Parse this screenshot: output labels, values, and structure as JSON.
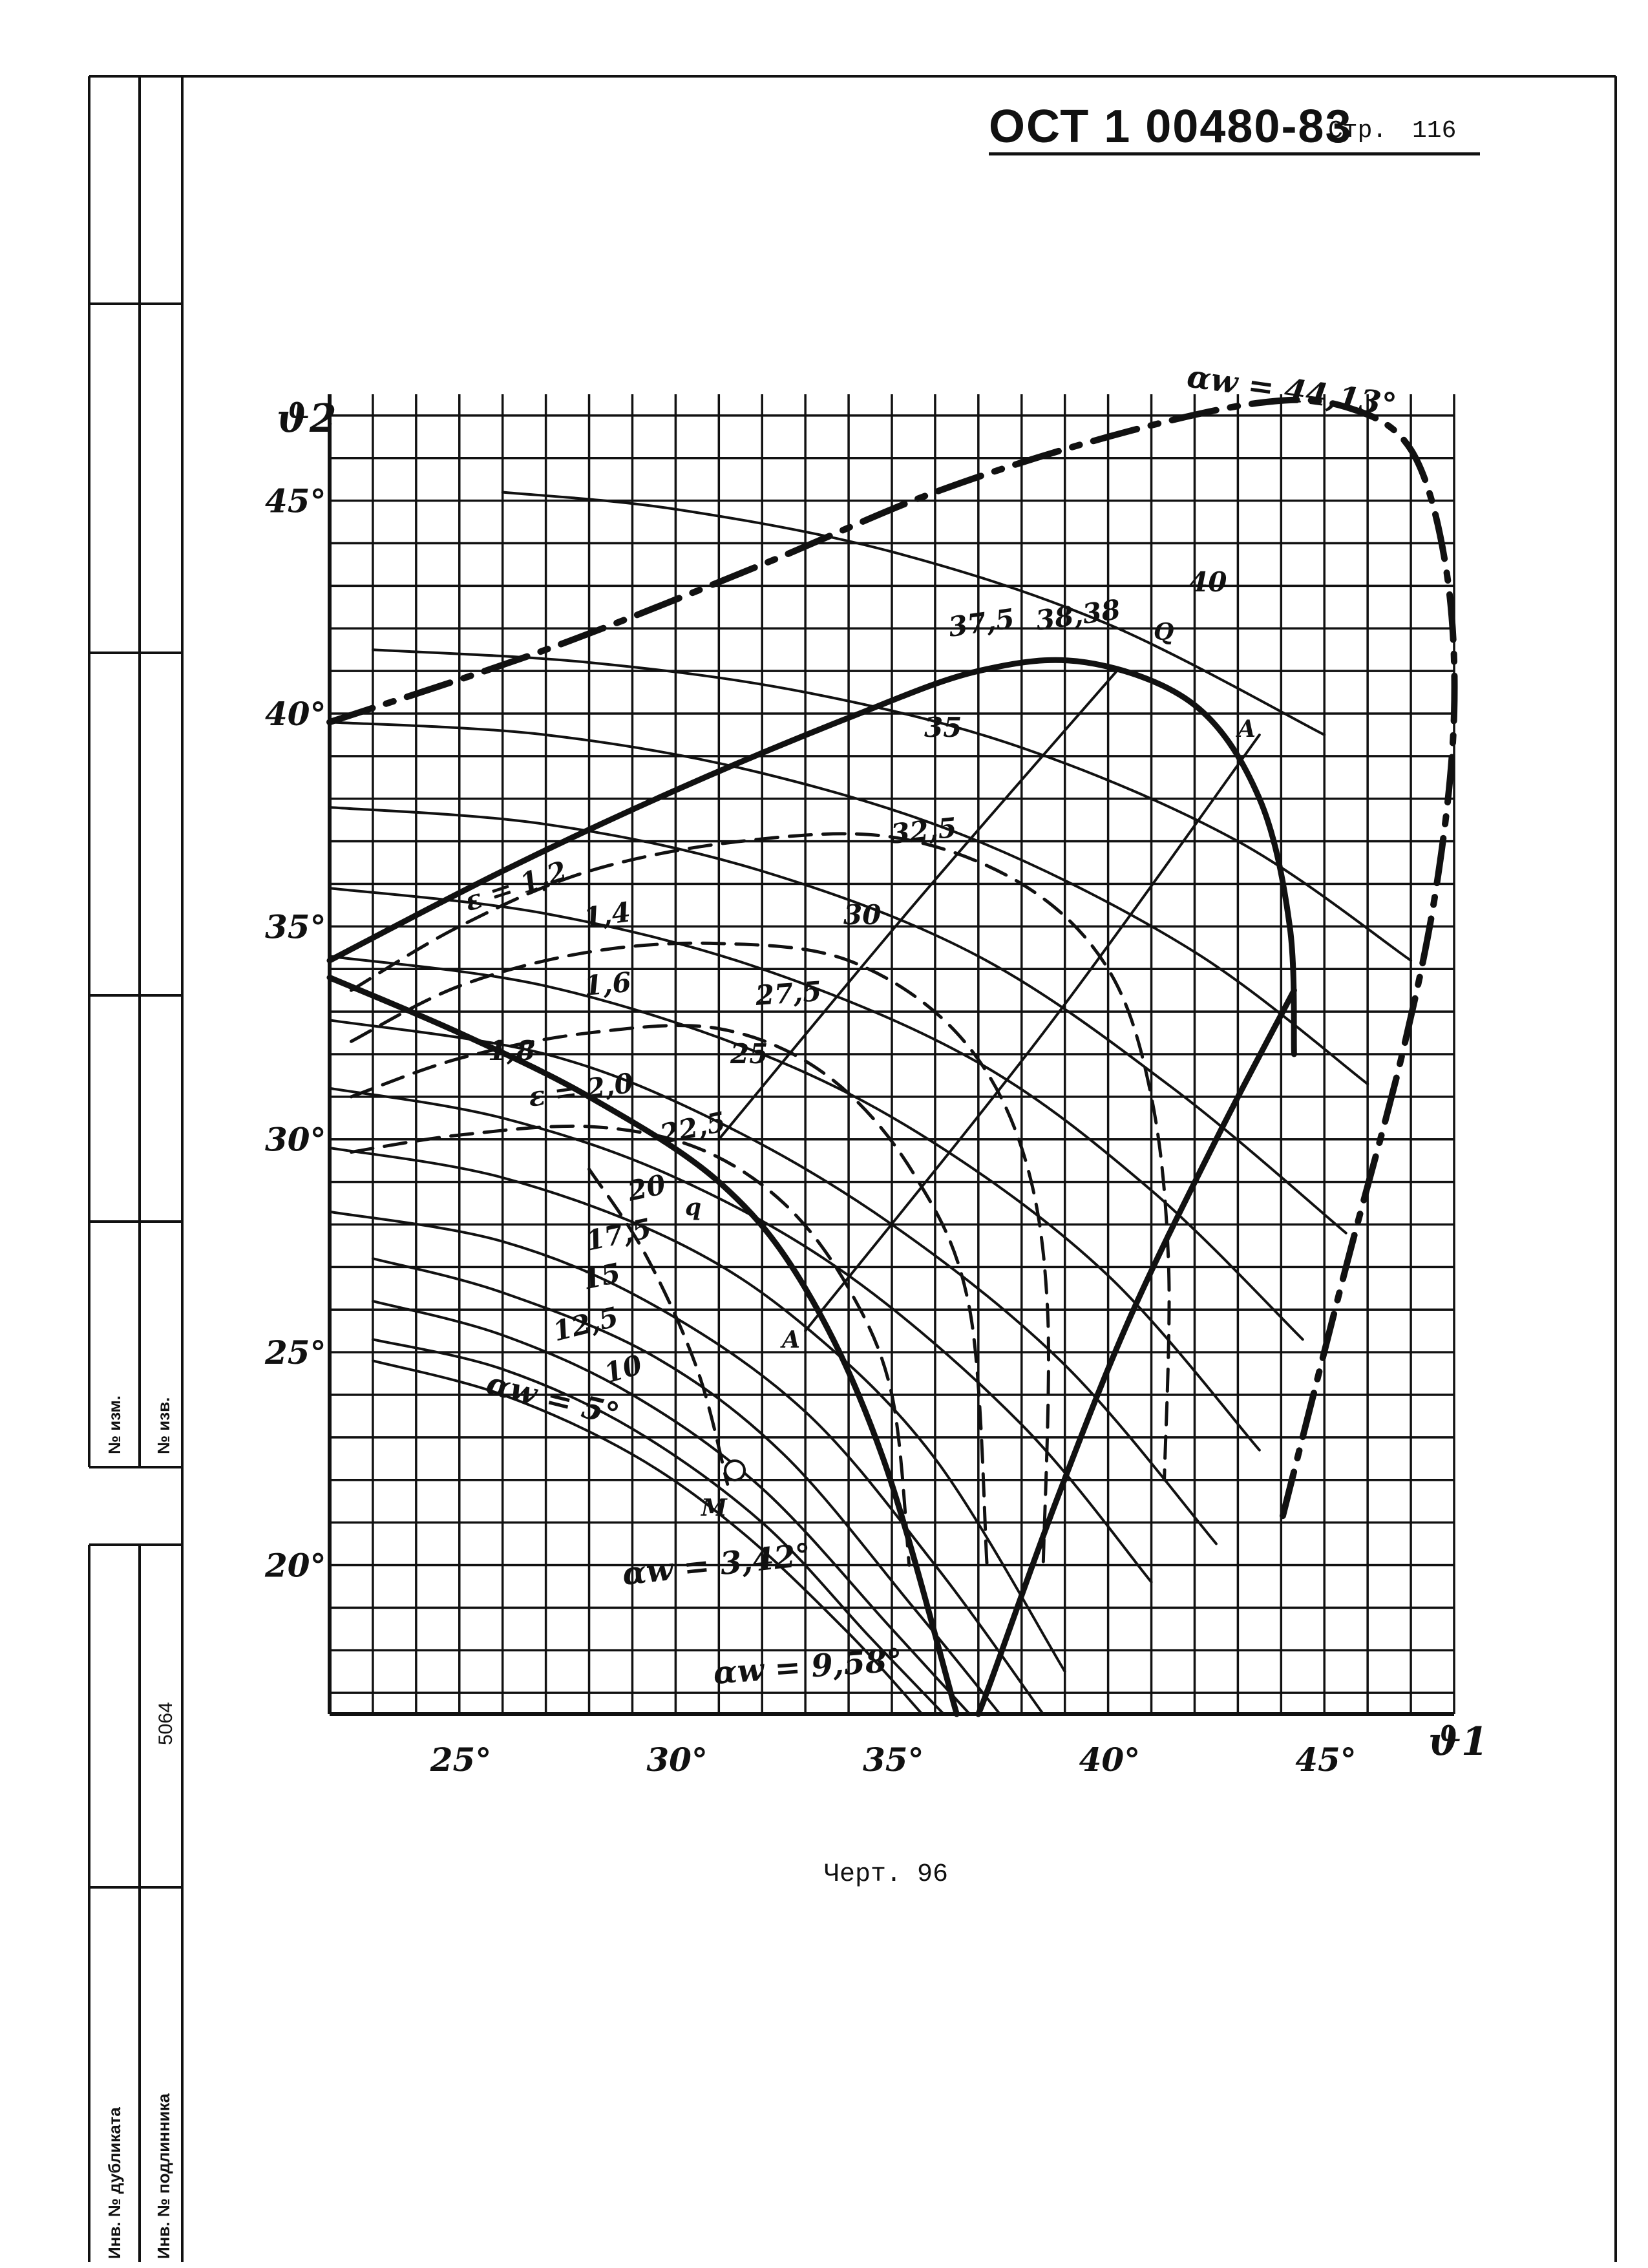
{
  "header": {
    "doc_number": "ОСТ 1 00480-83",
    "page_label": "Стр.",
    "page_number": "116"
  },
  "stamp": {
    "change_no_label": "№ изм.",
    "notice_no_label": "№ изв.",
    "inventory_value": "5064",
    "duplicate_label": "Инв. № дубликата",
    "original_label": "Инв. № подлинника"
  },
  "figure": {
    "caption": "Черт. 96"
  },
  "chart_data": {
    "type": "line",
    "xlabel": "ϑ1",
    "ylabel": "ϑ2",
    "x_ticks": [
      "25°",
      "30°",
      "35°",
      "40°",
      "45°"
    ],
    "y_ticks": [
      "20°",
      "25°",
      "30°",
      "35°",
      "40°",
      "45°"
    ],
    "xlim": [
      22,
      48
    ],
    "ylim": [
      16.5,
      47.5
    ],
    "grid": true,
    "curve_labels": [
      "40",
      "37,5",
      "38,38",
      "35",
      "32,5",
      "30",
      "27,5",
      "25",
      "22,5",
      "20",
      "17,5",
      "15",
      "12,5",
      "10"
    ],
    "epsilon_labels": [
      "ε = 1,2",
      "1,4",
      "1,6",
      "1,8",
      "ε = 2,0"
    ],
    "annotations": [
      "αw = 44,13°",
      "αw = 5°",
      "αw = 3,42°",
      "αw = 9,58°"
    ],
    "point_labels": [
      "Q",
      "A",
      "q",
      "A",
      "M"
    ],
    "series": [
      {
        "name": "40",
        "style": "thin",
        "x": [
          26,
          30,
          35,
          40,
          45
        ],
        "y": [
          45.2,
          44.8,
          43.8,
          42.1,
          39.5
        ]
      },
      {
        "name": "37,5",
        "style": "thin",
        "x": [
          23,
          28,
          33,
          38,
          43,
          47
        ],
        "y": [
          41.5,
          41.2,
          40.5,
          39.2,
          37.0,
          34.2
        ]
      },
      {
        "name": "35",
        "style": "thin",
        "x": [
          22,
          27,
          32,
          37,
          42,
          46
        ],
        "y": [
          39.8,
          39.5,
          38.6,
          37.0,
          34.4,
          31.3
        ]
      },
      {
        "name": "32,5",
        "style": "thin",
        "x": [
          22,
          27,
          32,
          37,
          41.5,
          45.5
        ],
        "y": [
          37.8,
          37.4,
          36.3,
          34.3,
          31.2,
          27.8
        ]
      },
      {
        "name": "30",
        "style": "thin",
        "x": [
          22,
          27,
          32,
          37,
          41,
          44.5
        ],
        "y": [
          35.9,
          35.3,
          34.0,
          31.8,
          28.8,
          25.3
        ]
      },
      {
        "name": "27,5",
        "style": "thin",
        "x": [
          22,
          27,
          32,
          36,
          40,
          43.5
        ],
        "y": [
          34.3,
          33.6,
          32.0,
          29.9,
          26.8,
          22.7
        ]
      },
      {
        "name": "25",
        "style": "thin",
        "x": [
          22,
          27,
          31,
          35,
          39,
          42.5
        ],
        "y": [
          32.8,
          32.0,
          30.4,
          28.0,
          24.7,
          20.5
        ]
      },
      {
        "name": "22,5",
        "style": "thin",
        "x": [
          22,
          26,
          30,
          34,
          38,
          41
        ],
        "y": [
          31.2,
          30.5,
          29.1,
          26.8,
          23.3,
          19.6
        ]
      },
      {
        "name": "20",
        "style": "thin",
        "x": [
          22,
          26,
          30,
          33,
          36,
          39
        ],
        "y": [
          29.8,
          29.1,
          27.6,
          25.6,
          22.5,
          17.5
        ]
      },
      {
        "name": "17,5",
        "style": "thin",
        "x": [
          22,
          26,
          29.5,
          33,
          36,
          38.5
        ],
        "y": [
          28.3,
          27.6,
          26.1,
          23.6,
          20.0,
          16.5
        ]
      },
      {
        "name": "15",
        "style": "thin",
        "x": [
          23,
          26,
          29.5,
          32.5,
          35.5,
          37.5
        ],
        "y": [
          27.2,
          26.4,
          24.9,
          22.6,
          19.0,
          16.5
        ]
      },
      {
        "name": "12,5",
        "style": "thin",
        "x": [
          23,
          26,
          29,
          32,
          35,
          36.8
        ],
        "y": [
          26.2,
          25.4,
          24.0,
          21.8,
          18.5,
          16.5
        ]
      },
      {
        "name": "10",
        "style": "thin",
        "x": [
          23,
          26,
          29,
          32,
          34.5,
          36.2
        ],
        "y": [
          25.3,
          24.6,
          23.2,
          21.0,
          18.3,
          16.5
        ]
      },
      {
        "name": "αw = 5°",
        "style": "thin",
        "x": [
          23,
          26,
          29,
          31.5,
          34,
          35.7
        ],
        "y": [
          24.8,
          24.0,
          22.6,
          20.8,
          18.4,
          16.5
        ]
      },
      {
        "name": "38,38",
        "style": "bold",
        "x": [
          22,
          26,
          30,
          34,
          37,
          39.5,
          42,
          43.5,
          44.2,
          44.3
        ],
        "y": [
          34.2,
          36.3,
          38.2,
          39.9,
          41.0,
          41.2,
          40.2,
          38.0,
          35.0,
          32.0
        ]
      },
      {
        "name": "αw = 44,13°",
        "style": "bold-dashed",
        "x": [
          22,
          27,
          32,
          36,
          40,
          43.5,
          45.5,
          47,
          47.8,
          48,
          47.6,
          46.8,
          45.5,
          44
        ],
        "y": [
          39.8,
          41.5,
          43.5,
          45.2,
          46.5,
          47.3,
          47.2,
          46.2,
          43.5,
          40.0,
          36.0,
          32.0,
          27.0,
          21.0
        ]
      },
      {
        "name": "ε = 1,2",
        "style": "dashed",
        "x": [
          22.5,
          25,
          28,
          31.5,
          35,
          38,
          40,
          41,
          41.4,
          41.3
        ],
        "y": [
          33.5,
          35.0,
          36.3,
          37.0,
          37.1,
          36.0,
          34.0,
          31.0,
          27.0,
          22.0
        ]
      },
      {
        "name": "1,4",
        "style": "dashed",
        "x": [
          22.5,
          25,
          28,
          31,
          34,
          36.5,
          38,
          38.6,
          38.5
        ],
        "y": [
          32.3,
          33.6,
          34.4,
          34.6,
          34.2,
          32.5,
          29.8,
          26.0,
          20.0
        ]
      },
      {
        "name": "1,6",
        "style": "dashed",
        "x": [
          22.5,
          25,
          28,
          31,
          33.5,
          35.5,
          36.8,
          37.2
        ],
        "y": [
          31.0,
          31.9,
          32.5,
          32.6,
          31.5,
          29.2,
          26.0,
          20.0
        ]
      },
      {
        "name": "ε = 2,0",
        "style": "dashed",
        "x": [
          22.5,
          25,
          28,
          30.5,
          32.5,
          34,
          35,
          35.4
        ],
        "y": [
          29.7,
          30.1,
          30.3,
          29.8,
          28.5,
          26.5,
          24.0,
          20.0
        ]
      },
      {
        "name": "αw = 3,42°",
        "style": "bold",
        "x": [
          22,
          25,
          28,
          31,
          33,
          34.8,
          36.5
        ],
        "y": [
          33.8,
          32.5,
          31.0,
          29.0,
          26.5,
          22.5,
          16.5
        ]
      },
      {
        "name": "αw = 9,58°",
        "style": "bold",
        "x": [
          37,
          37.3,
          38.8,
          40.5,
          42.5,
          44.3
        ],
        "y": [
          16.5,
          17.3,
          21.5,
          25.8,
          30.0,
          33.5
        ]
      },
      {
        "name": "Q–q",
        "style": "thin",
        "x": [
          40.2,
          35.5,
          31
        ],
        "y": [
          41.0,
          35.5,
          30.0
        ]
      },
      {
        "name": "A–A",
        "style": "thin",
        "x": [
          43.5,
          38.5,
          33
        ],
        "y": [
          39.5,
          32.5,
          25.5
        ]
      },
      {
        "name": "M",
        "style": "dashed",
        "x": [
          28,
          29.3,
          30.5,
          31.2
        ],
        "y": [
          29.3,
          27.3,
          24.6,
          21.9
        ]
      }
    ]
  }
}
